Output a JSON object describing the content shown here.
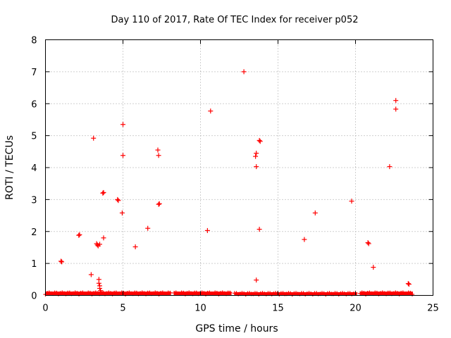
{
  "chart_data": {
    "type": "scatter",
    "title": "Day 110 of 2017, Rate Of TEC Index for receiver p052",
    "xlabel": "GPS time / hours",
    "ylabel": "ROTI / TECUs",
    "xlim": [
      0,
      25
    ],
    "ylim": [
      0,
      8
    ],
    "xticks": [
      "0",
      "5",
      "10",
      "15",
      "20",
      "25"
    ],
    "yticks": [
      "0",
      "1",
      "2",
      "3",
      "4",
      "5",
      "6",
      "7",
      "8"
    ],
    "grid": true,
    "marker": "+",
    "color": "#ff0000",
    "baseline_segments": [
      {
        "x_start": 0.0,
        "x_end": 8.1,
        "y_max": 0.12
      },
      {
        "x_start": 8.3,
        "x_end": 12.0,
        "y_max": 0.12
      },
      {
        "x_start": 12.2,
        "x_end": 20.1,
        "y_max": 0.1
      },
      {
        "x_start": 20.3,
        "x_end": 23.7,
        "y_max": 0.12
      }
    ],
    "points": [
      {
        "x": 1.0,
        "y": 1.07
      },
      {
        "x": 1.05,
        "y": 1.05
      },
      {
        "x": 2.15,
        "y": 1.88
      },
      {
        "x": 2.2,
        "y": 1.9
      },
      {
        "x": 2.95,
        "y": 0.65
      },
      {
        "x": 3.1,
        "y": 4.92
      },
      {
        "x": 3.3,
        "y": 1.62
      },
      {
        "x": 3.35,
        "y": 1.58
      },
      {
        "x": 3.4,
        "y": 1.55
      },
      {
        "x": 3.5,
        "y": 1.6
      },
      {
        "x": 3.45,
        "y": 0.5
      },
      {
        "x": 3.45,
        "y": 0.38
      },
      {
        "x": 3.5,
        "y": 0.3
      },
      {
        "x": 3.5,
        "y": 0.22
      },
      {
        "x": 3.55,
        "y": 0.15
      },
      {
        "x": 3.7,
        "y": 3.2
      },
      {
        "x": 3.75,
        "y": 3.22
      },
      {
        "x": 3.75,
        "y": 1.8
      },
      {
        "x": 4.65,
        "y": 3.0
      },
      {
        "x": 4.7,
        "y": 2.97
      },
      {
        "x": 5.0,
        "y": 5.35
      },
      {
        "x": 5.0,
        "y": 4.38
      },
      {
        "x": 4.95,
        "y": 2.58
      },
      {
        "x": 5.8,
        "y": 1.52
      },
      {
        "x": 6.6,
        "y": 2.1
      },
      {
        "x": 7.25,
        "y": 4.55
      },
      {
        "x": 7.3,
        "y": 4.38
      },
      {
        "x": 7.3,
        "y": 2.85
      },
      {
        "x": 7.35,
        "y": 2.87
      },
      {
        "x": 10.45,
        "y": 2.03
      },
      {
        "x": 10.65,
        "y": 5.77
      },
      {
        "x": 12.8,
        "y": 7.0
      },
      {
        "x": 13.55,
        "y": 4.35
      },
      {
        "x": 13.6,
        "y": 4.45
      },
      {
        "x": 13.6,
        "y": 4.03
      },
      {
        "x": 13.6,
        "y": 0.48
      },
      {
        "x": 13.8,
        "y": 4.85
      },
      {
        "x": 13.85,
        "y": 4.82
      },
      {
        "x": 13.8,
        "y": 2.07
      },
      {
        "x": 16.7,
        "y": 1.75
      },
      {
        "x": 17.4,
        "y": 2.58
      },
      {
        "x": 19.75,
        "y": 2.95
      },
      {
        "x": 20.8,
        "y": 1.65
      },
      {
        "x": 20.85,
        "y": 1.62
      },
      {
        "x": 21.15,
        "y": 0.88
      },
      {
        "x": 22.2,
        "y": 4.03
      },
      {
        "x": 22.6,
        "y": 6.1
      },
      {
        "x": 22.6,
        "y": 5.83
      },
      {
        "x": 23.4,
        "y": 0.37
      },
      {
        "x": 23.45,
        "y": 0.35
      }
    ]
  }
}
